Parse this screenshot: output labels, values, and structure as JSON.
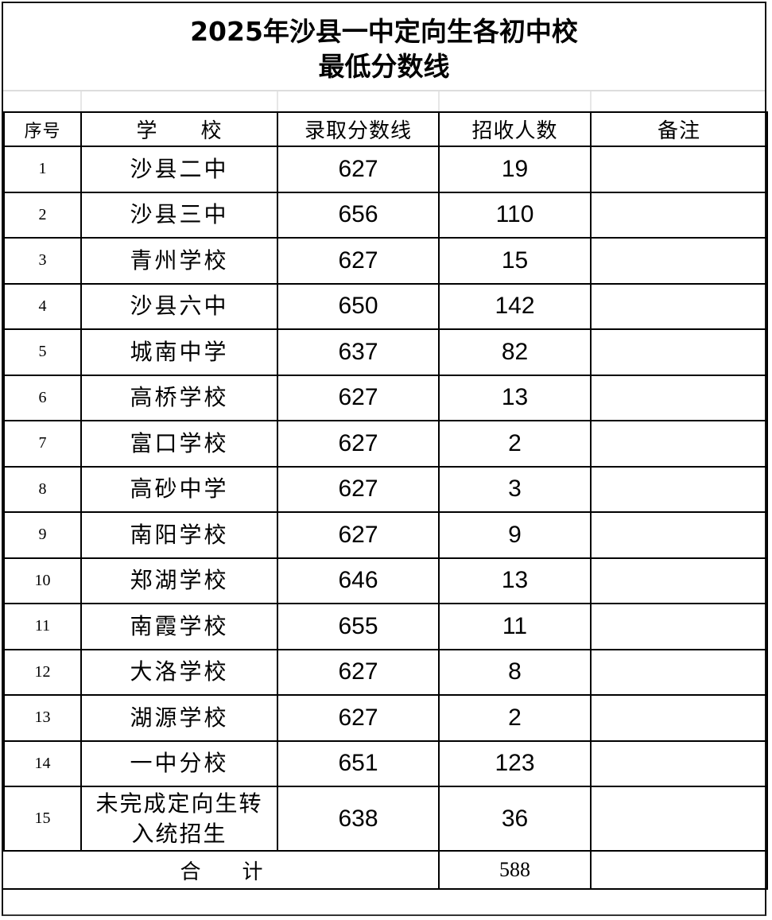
{
  "title": {
    "line1": "2025年沙县一中定向生各初中校",
    "line2": "最低分数线"
  },
  "headers": [
    "序号",
    "学　　校",
    "录取分数线",
    "招收人数",
    "备注"
  ],
  "rows": [
    {
      "no": "1",
      "school": "沙县二中",
      "score": "627",
      "count": "19",
      "note": ""
    },
    {
      "no": "2",
      "school": "沙县三中",
      "score": "656",
      "count": "110",
      "note": ""
    },
    {
      "no": "3",
      "school": "青州学校",
      "score": "627",
      "count": "15",
      "note": ""
    },
    {
      "no": "4",
      "school": "沙县六中",
      "score": "650",
      "count": "142",
      "note": ""
    },
    {
      "no": "5",
      "school": "城南中学",
      "score": "637",
      "count": "82",
      "note": ""
    },
    {
      "no": "6",
      "school": "高桥学校",
      "score": "627",
      "count": "13",
      "note": ""
    },
    {
      "no": "7",
      "school": "富口学校",
      "score": "627",
      "count": "2",
      "note": ""
    },
    {
      "no": "8",
      "school": "高砂中学",
      "score": "627",
      "count": "3",
      "note": ""
    },
    {
      "no": "9",
      "school": "南阳学校",
      "score": "627",
      "count": "9",
      "note": ""
    },
    {
      "no": "10",
      "school": "郑湖学校",
      "score": "646",
      "count": "13",
      "note": ""
    },
    {
      "no": "11",
      "school": "南霞学校",
      "score": "655",
      "count": "11",
      "note": ""
    },
    {
      "no": "12",
      "school": "大洛学校",
      "score": "627",
      "count": "8",
      "note": ""
    },
    {
      "no": "13",
      "school": "湖源学校",
      "score": "627",
      "count": "2",
      "note": ""
    },
    {
      "no": "14",
      "school": "一中分校",
      "score": "651",
      "count": "123",
      "note": ""
    },
    {
      "no": "15",
      "school": "未完成定向生转入统招生",
      "score": "638",
      "count": "36",
      "note": ""
    }
  ],
  "total": {
    "label": "合　　计",
    "count": "588",
    "note": ""
  }
}
